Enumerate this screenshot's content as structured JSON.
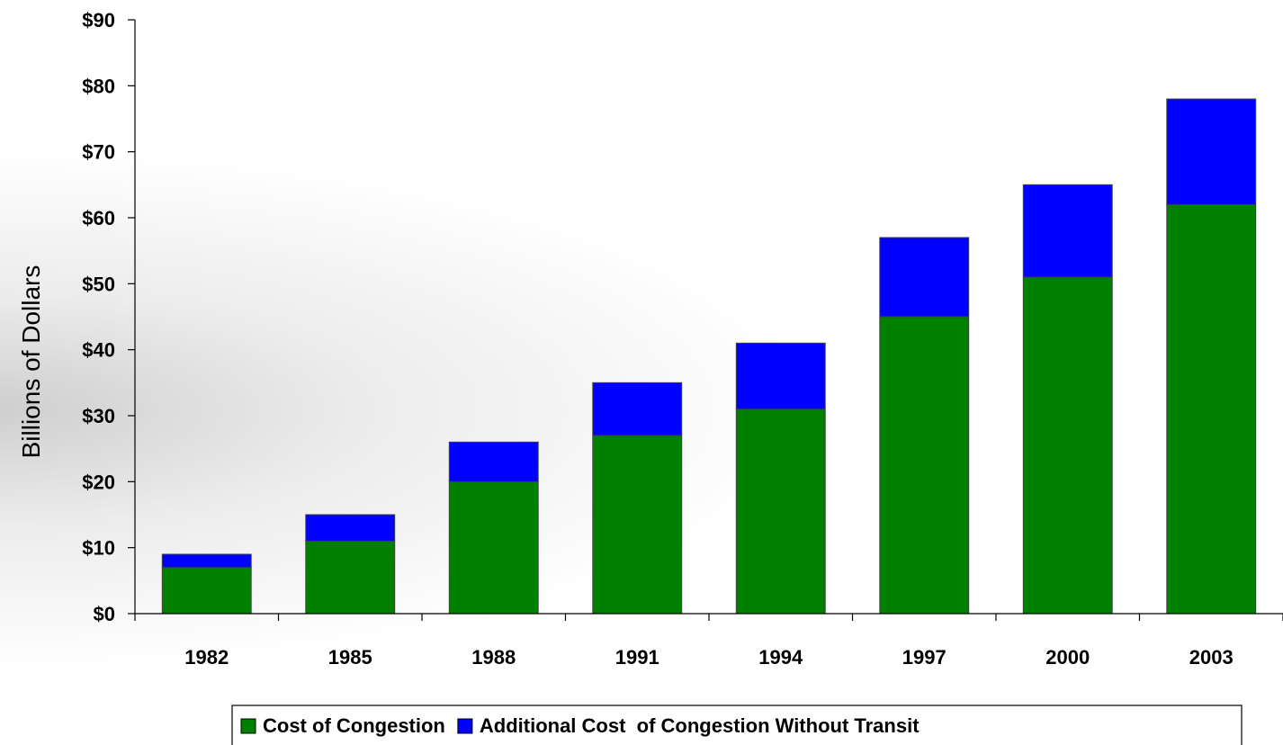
{
  "chart_data": {
    "type": "bar",
    "stacked": true,
    "title": "",
    "xlabel": "",
    "ylabel": "Billions of Dollars",
    "ylim": [
      0,
      90
    ],
    "y_tick_step": 10,
    "y_tick_labels": [
      "$0",
      "$10",
      "$20",
      "$30",
      "$40",
      "$50",
      "$60",
      "$70",
      "$80",
      "$90"
    ],
    "categories": [
      "1982",
      "1985",
      "1988",
      "1991",
      "1994",
      "1997",
      "2000",
      "2003"
    ],
    "series": [
      {
        "name": "Cost of Congestion",
        "color": "#008000",
        "values": [
          7,
          11,
          20,
          27,
          31,
          45,
          51,
          62
        ]
      },
      {
        "name": "Additional Cost  of Congestion Without Transit",
        "color": "#0000ff",
        "values": [
          2,
          4,
          6,
          8,
          10,
          12,
          14,
          16
        ]
      }
    ],
    "legend_position": "bottom",
    "grid": false
  }
}
